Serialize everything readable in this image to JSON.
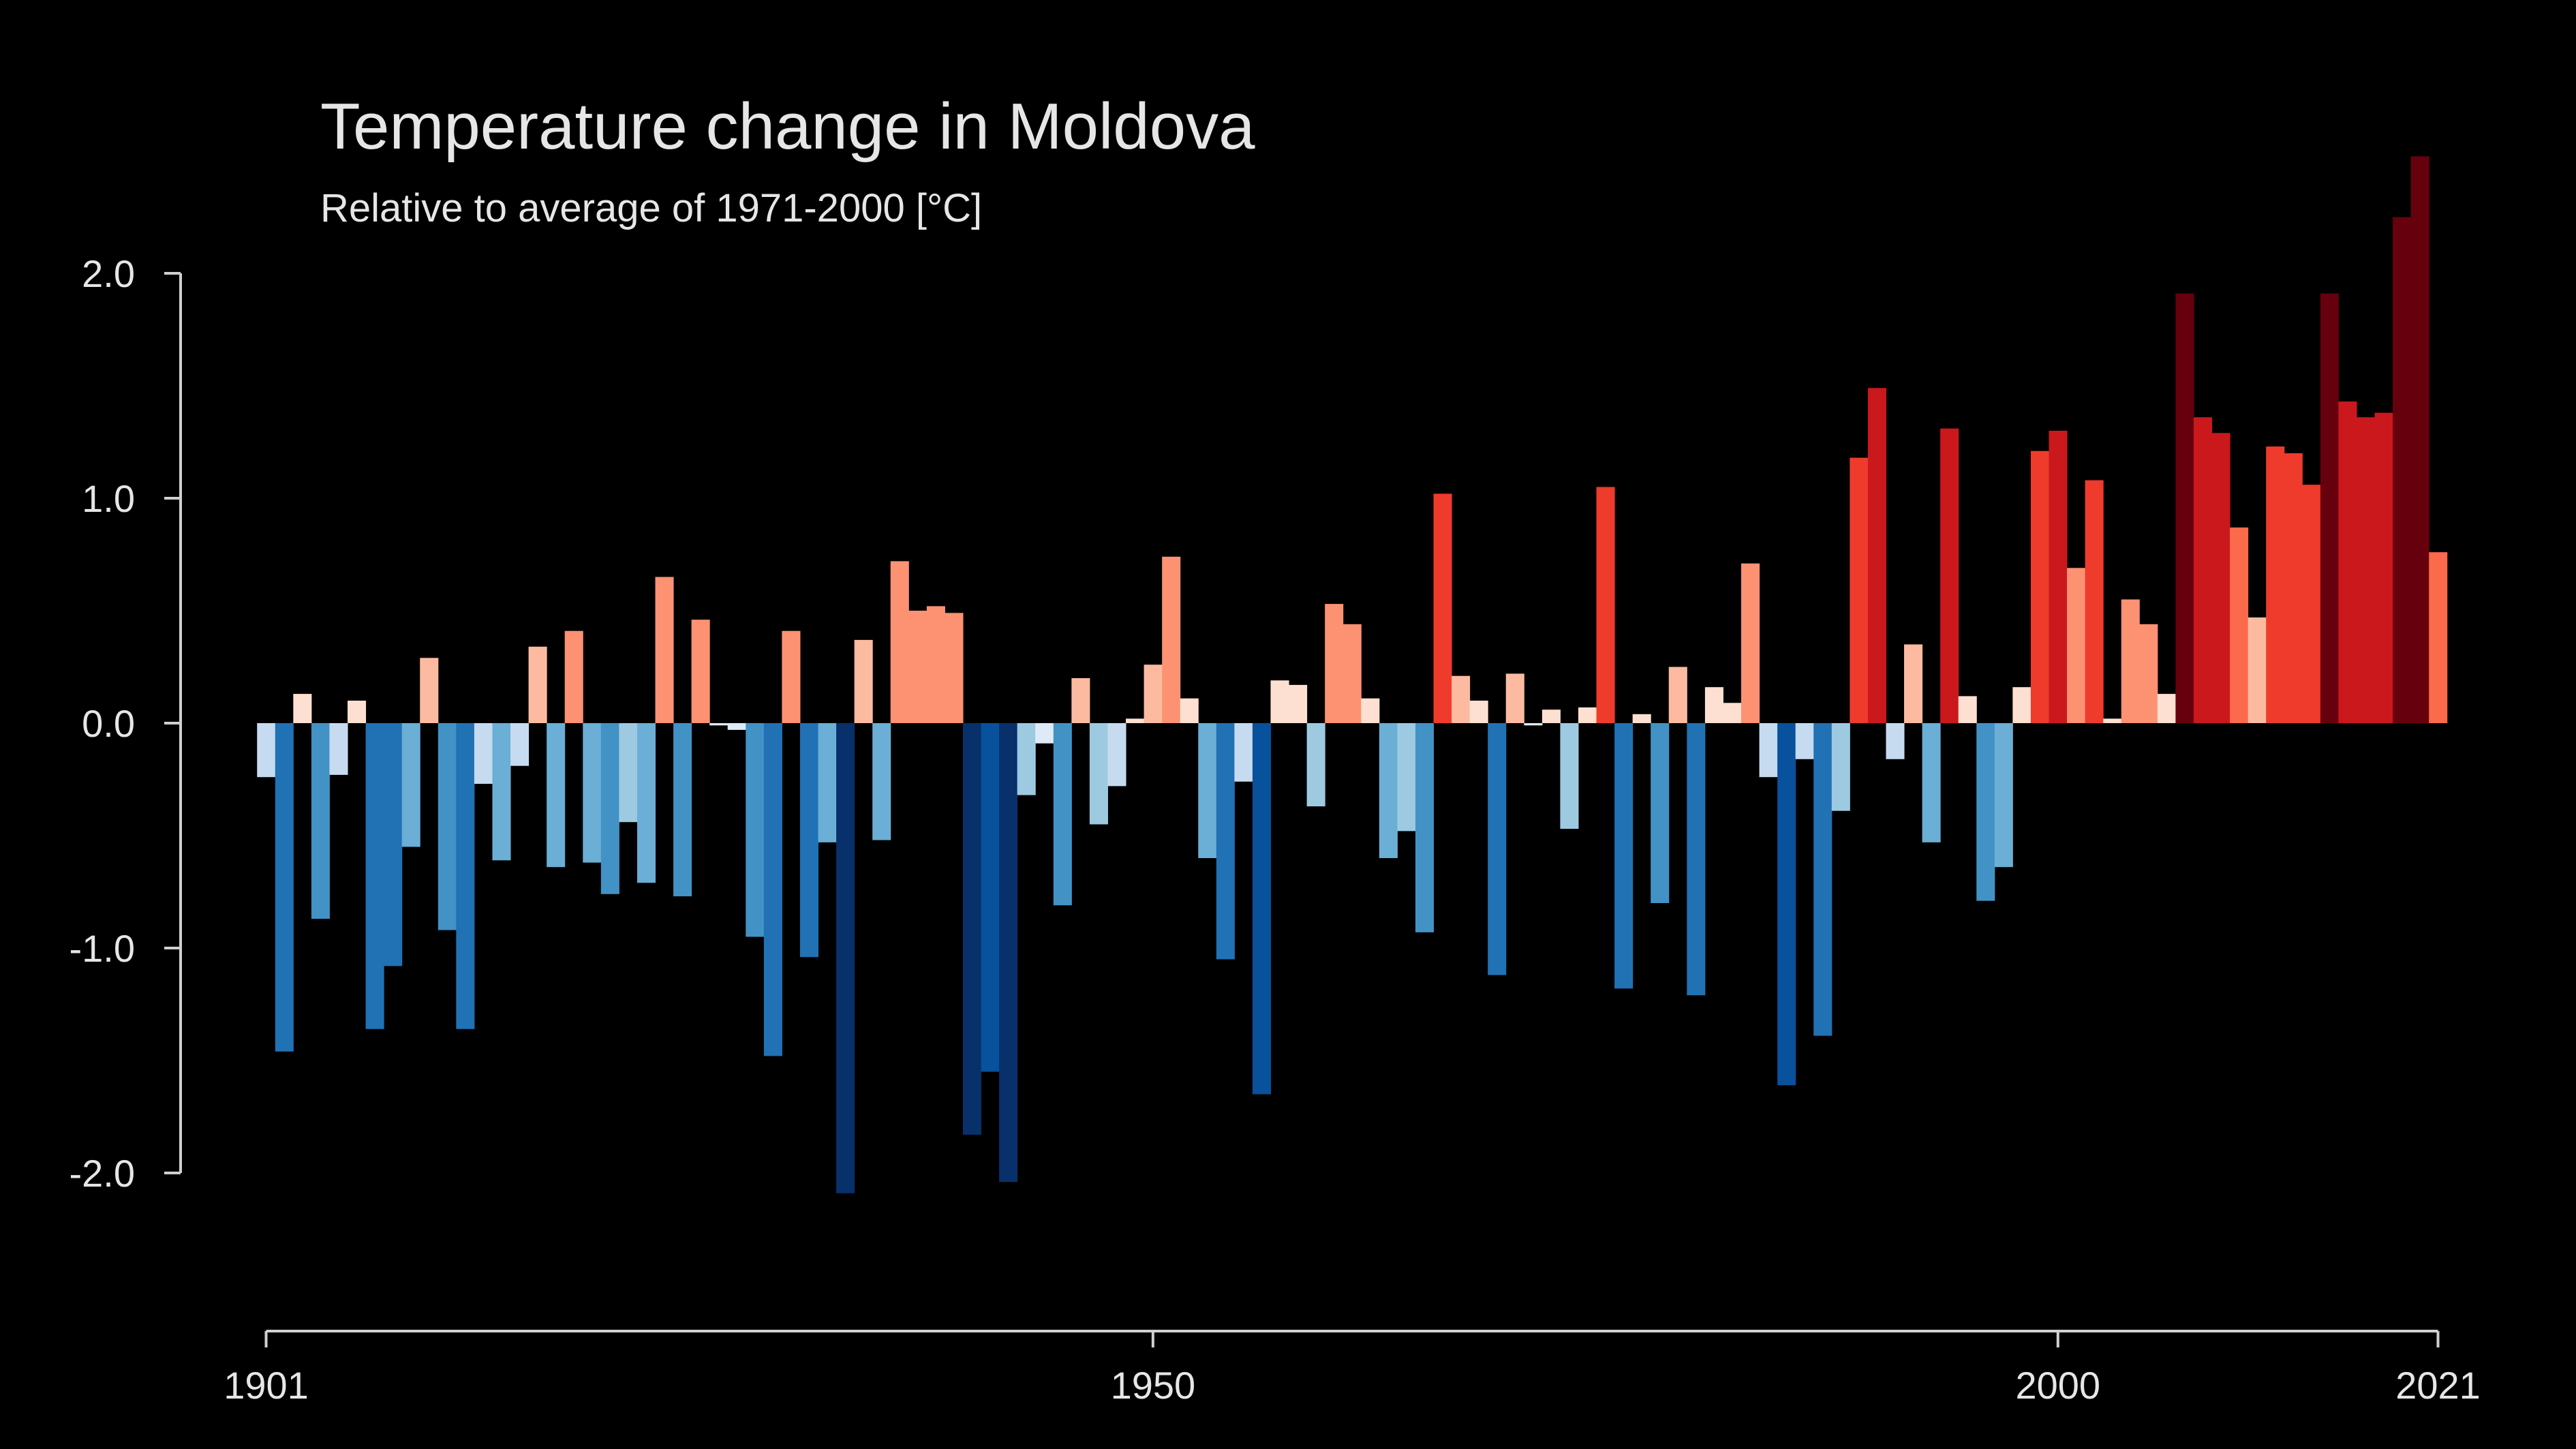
{
  "chart_data": {
    "type": "bar",
    "title": "Temperature change in Moldova",
    "subtitle": "Relative to average of 1971-2000  [°C]",
    "x": [
      1901,
      1902,
      1903,
      1904,
      1905,
      1906,
      1907,
      1908,
      1909,
      1910,
      1911,
      1912,
      1913,
      1914,
      1915,
      1916,
      1917,
      1918,
      1919,
      1920,
      1921,
      1922,
      1923,
      1924,
      1925,
      1926,
      1927,
      1928,
      1929,
      1930,
      1931,
      1932,
      1933,
      1934,
      1935,
      1936,
      1937,
      1938,
      1939,
      1940,
      1941,
      1942,
      1943,
      1944,
      1945,
      1946,
      1947,
      1948,
      1949,
      1950,
      1951,
      1952,
      1953,
      1954,
      1955,
      1956,
      1957,
      1958,
      1959,
      1960,
      1961,
      1962,
      1963,
      1964,
      1965,
      1966,
      1967,
      1968,
      1969,
      1970,
      1971,
      1972,
      1973,
      1974,
      1975,
      1976,
      1977,
      1978,
      1979,
      1980,
      1981,
      1982,
      1983,
      1984,
      1985,
      1986,
      1987,
      1988,
      1989,
      1990,
      1991,
      1992,
      1993,
      1994,
      1995,
      1996,
      1997,
      1998,
      1999,
      2000,
      2001,
      2002,
      2003,
      2004,
      2005,
      2006,
      2007,
      2008,
      2009,
      2010,
      2011,
      2012,
      2013,
      2014,
      2015,
      2016,
      2017,
      2018,
      2019,
      2020,
      2021
    ],
    "values": [
      -0.24,
      -1.46,
      0.13,
      -0.87,
      -0.23,
      0.1,
      -1.36,
      -1.08,
      -0.55,
      0.29,
      -0.92,
      -1.36,
      -0.27,
      -0.61,
      -0.19,
      0.34,
      -0.64,
      0.41,
      -0.62,
      -0.76,
      -0.44,
      -0.71,
      0.65,
      -0.77,
      0.46,
      -0.01,
      -0.03,
      -0.95,
      -1.48,
      0.41,
      -1.04,
      -0.53,
      -2.09,
      0.37,
      -0.52,
      0.72,
      0.5,
      0.52,
      0.49,
      -1.83,
      -1.55,
      -2.04,
      -0.32,
      -0.09,
      -0.81,
      0.2,
      -0.45,
      -0.28,
      0.02,
      0.26,
      0.74,
      0.11,
      -0.6,
      -1.05,
      -0.26,
      -1.65,
      0.19,
      0.17,
      -0.37,
      0.53,
      0.44,
      0.11,
      -0.6,
      -0.48,
      -0.93,
      1.02,
      0.21,
      0.1,
      -1.12,
      0.22,
      -0.01,
      0.06,
      -0.47,
      0.07,
      1.05,
      -1.18,
      0.04,
      -0.8,
      0.25,
      -1.21,
      0.16,
      0.09,
      0.71,
      -0.24,
      -1.61,
      -0.16,
      -1.39,
      -0.39,
      1.18,
      1.49,
      -0.16,
      0.35,
      -0.53,
      1.31,
      0.12,
      -0.79,
      -0.64,
      0.16,
      1.21,
      1.3,
      0.69,
      1.08,
      0.02,
      0.55,
      0.44,
      0.13,
      1.91,
      1.36,
      1.29,
      0.87,
      0.47,
      1.23,
      1.2,
      1.06,
      1.91,
      1.43,
      1.36,
      1.38,
      2.25,
      2.52,
      0.76
    ],
    "colors": [
      "#c6dbef",
      "#2171b5",
      "#fee0d2",
      "#4292c6",
      "#c6dbef",
      "#fee0d2",
      "#2171b5",
      "#2171b5",
      "#6baed6",
      "#fcbba1",
      "#4292c6",
      "#2171b5",
      "#c6dbef",
      "#6baed6",
      "#c6dbef",
      "#fcbba1",
      "#6baed6",
      "#fc9272",
      "#6baed6",
      "#4292c6",
      "#9ecae1",
      "#6baed6",
      "#fc9272",
      "#4292c6",
      "#fc9272",
      "#deebf7",
      "#deebf7",
      "#4292c6",
      "#2171b5",
      "#fc9272",
      "#2171b5",
      "#6baed6",
      "#08306b",
      "#fcbba1",
      "#6baed6",
      "#fc9272",
      "#fc9272",
      "#fc9272",
      "#fc9272",
      "#08306b",
      "#08519c",
      "#08306b",
      "#9ecae1",
      "#deebf7",
      "#4292c6",
      "#fcbba1",
      "#9ecae1",
      "#c6dbef",
      "#fee0d2",
      "#fcbba1",
      "#fc9272",
      "#fee0d2",
      "#6baed6",
      "#2171b5",
      "#c6dbef",
      "#08519c",
      "#fee0d2",
      "#fee0d2",
      "#9ecae1",
      "#fc9272",
      "#fc9272",
      "#fee0d2",
      "#6baed6",
      "#9ecae1",
      "#4292c6",
      "#ef3b2c",
      "#fcbba1",
      "#fee0d2",
      "#2171b5",
      "#fcbba1",
      "#deebf7",
      "#fee0d2",
      "#9ecae1",
      "#fee0d2",
      "#ef3b2c",
      "#2171b5",
      "#fee0d2",
      "#4292c6",
      "#fcbba1",
      "#2171b5",
      "#fee0d2",
      "#fee0d2",
      "#fc9272",
      "#c6dbef",
      "#08519c",
      "#c6dbef",
      "#2171b5",
      "#9ecae1",
      "#ef3b2c",
      "#cb181d",
      "#c6dbef",
      "#fcbba1",
      "#6baed6",
      "#cb181d",
      "#fee0d2",
      "#4292c6",
      "#6baed6",
      "#fee0d2",
      "#ef3b2c",
      "#cb181d",
      "#fc9272",
      "#ef3b2c",
      "#fee0d2",
      "#fc9272",
      "#fc9272",
      "#fee0d2",
      "#67000d",
      "#cb181d",
      "#cb181d",
      "#fb6a4a",
      "#fcbba1",
      "#ef3b2c",
      "#ef3b2c",
      "#ef3b2c",
      "#67000d",
      "#cb181d",
      "#cb181d",
      "#cb181d",
      "#67000d",
      "#67000d",
      "#fb6a4a"
    ],
    "xlim": [
      1901,
      2021
    ],
    "xticks": [
      1901,
      1950,
      2000,
      2021
    ],
    "ylim": [
      -2.7,
      2.7
    ],
    "yticks": [
      {
        "value": -2,
        "label": "-2.0"
      },
      {
        "value": -1,
        "label": "-1.0"
      },
      {
        "value": 0,
        "label": "0.0"
      },
      {
        "value": 1,
        "label": "1.0"
      },
      {
        "value": 2,
        "label": "2.0"
      }
    ]
  }
}
